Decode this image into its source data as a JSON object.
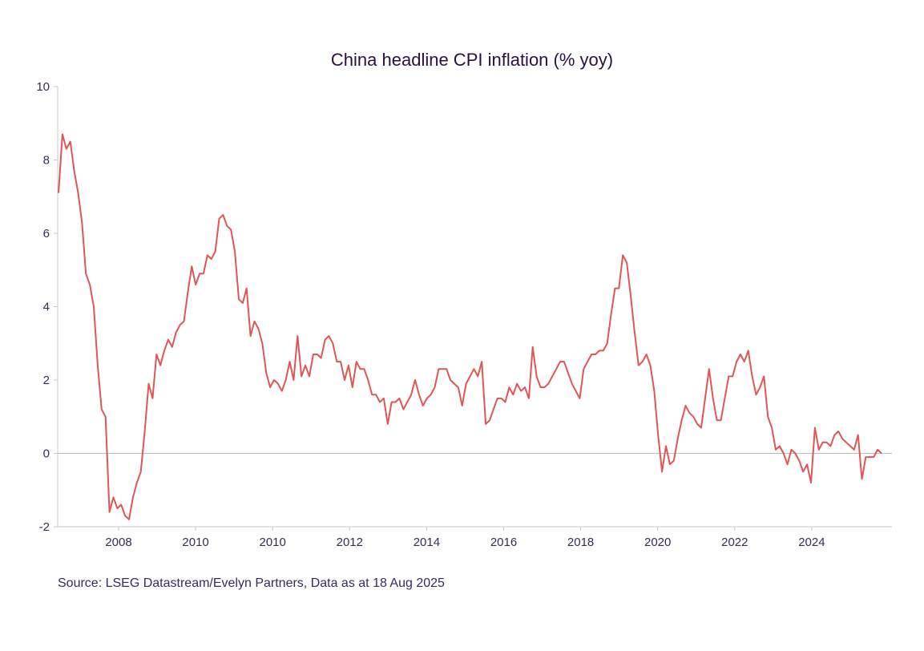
{
  "chart_data": {
    "type": "line",
    "title": "China headline CPI inflation (% yoy)",
    "xlabel": "",
    "ylabel": "",
    "ylim": [
      -2,
      10
    ],
    "y_ticks": [
      "-2",
      "0",
      "2",
      "4",
      "6",
      "8",
      "10"
    ],
    "x_tick_labels": [
      "2008",
      "2010",
      "2010",
      "2012",
      "2014",
      "2016",
      "2018",
      "2020",
      "2022",
      "2024"
    ],
    "grid": false,
    "zero_line": true,
    "line_color": "#e05555",
    "series": [
      {
        "values": [
          7.1,
          8.7,
          8.3,
          8.5,
          7.7,
          7.1,
          6.3,
          4.9,
          4.6,
          4.0,
          2.4,
          1.2,
          1.0,
          -1.6,
          -1.2,
          -1.5,
          -1.4,
          -1.7,
          -1.8,
          -1.2,
          -0.8,
          -0.5,
          0.6,
          1.9,
          1.5,
          2.7,
          2.4,
          2.8,
          3.1,
          2.9,
          3.3,
          3.5,
          3.6,
          4.4,
          5.1,
          4.6,
          4.9,
          4.9,
          5.4,
          5.3,
          5.5,
          6.4,
          6.5,
          6.2,
          6.1,
          5.5,
          4.2,
          4.1,
          4.5,
          3.2,
          3.6,
          3.4,
          3.0,
          2.2,
          1.8,
          2.0,
          1.9,
          1.7,
          2.0,
          2.5,
          2.0,
          3.2,
          2.1,
          2.4,
          2.1,
          2.7,
          2.7,
          2.6,
          3.1,
          3.2,
          3.0,
          2.5,
          2.5,
          2.0,
          2.4,
          1.8,
          2.5,
          2.3,
          2.3,
          2.0,
          1.6,
          1.6,
          1.4,
          1.5,
          0.8,
          1.4,
          1.4,
          1.5,
          1.2,
          1.4,
          1.6,
          2.0,
          1.6,
          1.3,
          1.5,
          1.6,
          1.8,
          2.3,
          2.3,
          2.3,
          2.0,
          1.9,
          1.8,
          1.3,
          1.9,
          2.1,
          2.3,
          2.1,
          2.5,
          0.8,
          0.9,
          1.2,
          1.5,
          1.5,
          1.4,
          1.8,
          1.6,
          1.9,
          1.7,
          1.8,
          1.5,
          2.9,
          2.1,
          1.8,
          1.8,
          1.9,
          2.1,
          2.3,
          2.5,
          2.5,
          2.2,
          1.9,
          1.7,
          1.5,
          2.3,
          2.5,
          2.7,
          2.7,
          2.8,
          2.8,
          3.0,
          3.8,
          4.5,
          4.5,
          5.4,
          5.2,
          4.3,
          3.3,
          2.4,
          2.5,
          2.7,
          2.4,
          1.7,
          0.5,
          -0.5,
          0.2,
          -0.3,
          -0.2,
          0.4,
          0.9,
          1.3,
          1.1,
          1.0,
          0.8,
          0.7,
          1.5,
          2.3,
          1.5,
          0.9,
          0.9,
          1.5,
          2.1,
          2.1,
          2.5,
          2.7,
          2.5,
          2.8,
          2.1,
          1.6,
          1.8,
          2.1,
          1.0,
          0.7,
          0.1,
          0.2,
          0.0,
          -0.3,
          0.1,
          0.0,
          -0.2,
          -0.5,
          -0.3,
          -0.8,
          0.7,
          0.1,
          0.3,
          0.3,
          0.2,
          0.5,
          0.6,
          0.4,
          0.3,
          0.2,
          0.1,
          0.5,
          -0.7,
          -0.1,
          -0.1,
          -0.1,
          0.1,
          0.0
        ]
      }
    ],
    "source": "Source: LSEG Datastream/Evelyn Partners, Data as at 18 Aug 2025"
  }
}
